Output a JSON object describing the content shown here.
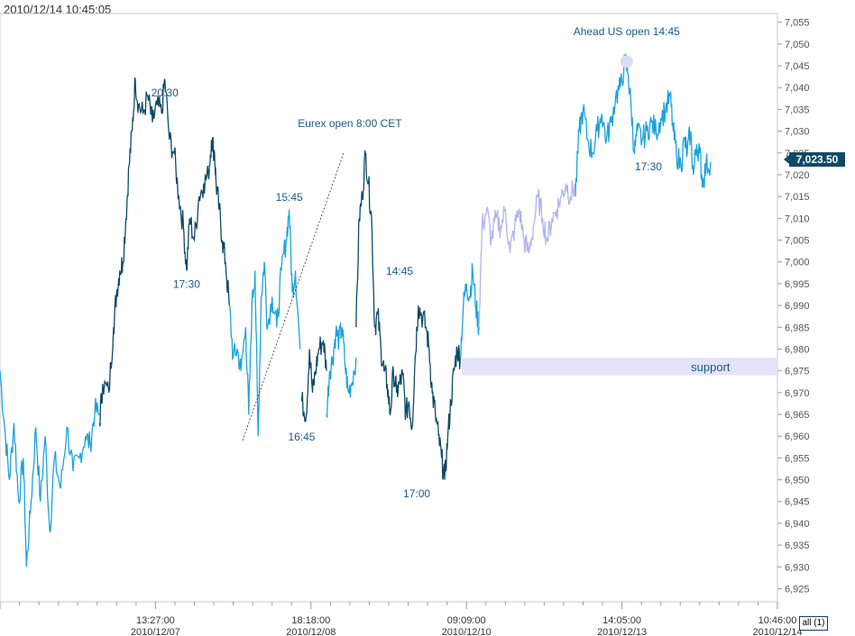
{
  "timestamp": "2010/12/14 10:45:05",
  "last_price_label": "7,023.50",
  "all_button_label": "all (1)",
  "colors": {
    "dark": "#0d4a66",
    "light": "#1ba3dc",
    "lavender": "#b3b3ef",
    "support_band": "#e3e3fb",
    "label_bg": "#0d4a66"
  },
  "chart_data": {
    "type": "line",
    "title": "",
    "ylim": [
      6922,
      7057
    ],
    "y_ticks": [
      "6,925",
      "6,930",
      "6,935",
      "6,940",
      "6,945",
      "6,950",
      "6,955",
      "6,960",
      "6,965",
      "6,970",
      "6,975",
      "6,980",
      "6,985",
      "6,990",
      "6,995",
      "7,000",
      "7,005",
      "7,010",
      "7,015",
      "7,020",
      "7,025",
      "7,030",
      "7,035",
      "7,040",
      "7,045",
      "7,050",
      "7,055"
    ],
    "x_ticks": [
      {
        "time": "13:27:00",
        "date": "2010/12/07"
      },
      {
        "time": "18:18:00",
        "date": "2010/12/08"
      },
      {
        "time": "09:09:00",
        "date": "2010/12/10"
      },
      {
        "time": "14:05:00",
        "date": "2010/12/13"
      },
      {
        "time": "10:46:00",
        "date": "2010/12/14"
      }
    ],
    "x_tick_positions": [
      0.2,
      0.4,
      0.6,
      0.8,
      1.0
    ],
    "series": [
      {
        "color": "light",
        "points": [
          [
            0.0,
            6975
          ],
          [
            0.006,
            6962
          ],
          [
            0.012,
            6950
          ],
          [
            0.018,
            6963
          ],
          [
            0.024,
            6945
          ],
          [
            0.03,
            6955
          ],
          [
            0.034,
            6930
          ],
          [
            0.04,
            6945
          ],
          [
            0.046,
            6962
          ],
          [
            0.052,
            6945
          ],
          [
            0.058,
            6960
          ],
          [
            0.064,
            6938
          ],
          [
            0.07,
            6955
          ],
          [
            0.078,
            6948
          ],
          [
            0.086,
            6962
          ],
          [
            0.094,
            6952
          ],
          [
            0.102,
            6955
          ],
          [
            0.11,
            6960
          ],
          [
            0.116,
            6958
          ],
          [
            0.122,
            6966
          ],
          [
            0.128,
            6965
          ]
        ]
      },
      {
        "color": "dark",
        "points": [
          [
            0.128,
            6963
          ],
          [
            0.132,
            6972
          ],
          [
            0.14,
            6970
          ],
          [
            0.146,
            6985
          ],
          [
            0.15,
            6993
          ],
          [
            0.154,
            6998
          ],
          [
            0.158,
            7000
          ],
          [
            0.162,
            7010
          ],
          [
            0.166,
            7022
          ],
          [
            0.17,
            7030
          ],
          [
            0.174,
            7042
          ],
          [
            0.178,
            7036
          ],
          [
            0.184,
            7034
          ],
          [
            0.19,
            7038
          ],
          [
            0.196,
            7032
          ],
          [
            0.202,
            7036
          ],
          [
            0.208,
            7034
          ],
          [
            0.212,
            7042
          ],
          [
            0.218,
            7028
          ],
          [
            0.224,
            7025
          ],
          [
            0.23,
            7015
          ],
          [
            0.236,
            7008
          ],
          [
            0.24,
            6998
          ],
          [
            0.244,
            7010
          ],
          [
            0.25,
            7005
          ],
          [
            0.256,
            7015
          ],
          [
            0.262,
            7018
          ],
          [
            0.268,
            7020
          ],
          [
            0.272,
            7028
          ],
          [
            0.276,
            7025
          ],
          [
            0.278,
            7018
          ],
          [
            0.282,
            7012
          ],
          [
            0.286,
            7005
          ],
          [
            0.29,
            7000
          ],
          [
            0.295,
            6990
          ]
        ]
      },
      {
        "color": "light",
        "points": [
          [
            0.295,
            6990
          ],
          [
            0.3,
            6978
          ],
          [
            0.305,
            6980
          ],
          [
            0.31,
            6975
          ],
          [
            0.316,
            6985
          ],
          [
            0.32,
            6965
          ],
          [
            0.324,
            6990
          ],
          [
            0.328,
            6998
          ],
          [
            0.332,
            6960
          ],
          [
            0.336,
            6992
          ],
          [
            0.34,
            7000
          ],
          [
            0.344,
            6985
          ],
          [
            0.35,
            6992
          ],
          [
            0.356,
            6985
          ],
          [
            0.362,
            6998
          ],
          [
            0.368,
            7005
          ],
          [
            0.372,
            7012
          ],
          [
            0.376,
            6993
          ],
          [
            0.38,
            6998
          ],
          [
            0.386,
            6980
          ]
        ]
      },
      {
        "color": "dark",
        "points": [
          [
            0.388,
            6968
          ],
          [
            0.394,
            6965
          ],
          [
            0.398,
            6980
          ],
          [
            0.402,
            6970
          ],
          [
            0.406,
            6975
          ],
          [
            0.41,
            6980
          ],
          [
            0.416,
            6982
          ],
          [
            0.42,
            6975
          ]
        ]
      },
      {
        "color": "light",
        "points": [
          [
            0.42,
            6965
          ],
          [
            0.424,
            6975
          ],
          [
            0.428,
            6978
          ],
          [
            0.432,
            6984
          ],
          [
            0.436,
            6982
          ],
          [
            0.44,
            6985
          ],
          [
            0.444,
            6976
          ],
          [
            0.448,
            6970
          ],
          [
            0.452,
            6972
          ],
          [
            0.458,
            6978
          ]
        ]
      },
      {
        "color": "dark",
        "points": [
          [
            0.458,
            6985
          ],
          [
            0.462,
            7010
          ],
          [
            0.466,
            7015
          ],
          [
            0.47,
            7025
          ],
          [
            0.474,
            7018
          ],
          [
            0.478,
            7010
          ],
          [
            0.482,
            6985
          ],
          [
            0.486,
            6988
          ],
          [
            0.49,
            6980
          ],
          [
            0.494,
            6975
          ],
          [
            0.498,
            6972
          ],
          [
            0.502,
            6965
          ],
          [
            0.506,
            6975
          ],
          [
            0.51,
            6970
          ],
          [
            0.514,
            6972
          ],
          [
            0.518,
            6974
          ],
          [
            0.522,
            6965
          ],
          [
            0.526,
            6968
          ],
          [
            0.53,
            6962
          ],
          [
            0.534,
            6978
          ],
          [
            0.538,
            6990
          ],
          [
            0.542,
            6988
          ],
          [
            0.548,
            6985
          ],
          [
            0.552,
            6980
          ],
          [
            0.556,
            6970
          ],
          [
            0.56,
            6965
          ],
          [
            0.564,
            6960
          ],
          [
            0.568,
            6955
          ],
          [
            0.572,
            6950
          ],
          [
            0.576,
            6960
          ],
          [
            0.58,
            6968
          ],
          [
            0.584,
            6975
          ],
          [
            0.588,
            6980
          ],
          [
            0.592,
            6978
          ]
        ]
      },
      {
        "color": "light",
        "points": [
          [
            0.592,
            6978
          ],
          [
            0.596,
            6990
          ],
          [
            0.6,
            6995
          ],
          [
            0.604,
            6992
          ],
          [
            0.608,
            6998
          ],
          [
            0.612,
            6990
          ],
          [
            0.616,
            6985
          ]
        ]
      },
      {
        "color": "lavender",
        "points": [
          [
            0.616,
            6985
          ],
          [
            0.62,
            7008
          ],
          [
            0.626,
            7012
          ],
          [
            0.632,
            7005
          ],
          [
            0.638,
            7010
          ],
          [
            0.644,
            7008
          ],
          [
            0.65,
            7012
          ],
          [
            0.656,
            7002
          ],
          [
            0.662,
            7008
          ],
          [
            0.668,
            7012
          ],
          [
            0.674,
            7005
          ],
          [
            0.68,
            7002
          ],
          [
            0.686,
            7008
          ],
          [
            0.692,
            7015
          ],
          [
            0.698,
            7010
          ],
          [
            0.704,
            7005
          ],
          [
            0.71,
            7010
          ],
          [
            0.716,
            7012
          ],
          [
            0.722,
            7015
          ],
          [
            0.728,
            7018
          ],
          [
            0.734,
            7015
          ],
          [
            0.74,
            7018
          ]
        ]
      },
      {
        "color": "light",
        "points": [
          [
            0.74,
            7015
          ],
          [
            0.745,
            7030
          ],
          [
            0.75,
            7035
          ],
          [
            0.756,
            7028
          ],
          [
            0.762,
            7025
          ],
          [
            0.768,
            7030
          ],
          [
            0.774,
            7034
          ],
          [
            0.78,
            7028
          ],
          [
            0.786,
            7032
          ],
          [
            0.792,
            7038
          ],
          [
            0.798,
            7040
          ],
          [
            0.804,
            7046
          ],
          [
            0.808,
            7043
          ],
          [
            0.812,
            7035
          ],
          [
            0.816,
            7025
          ],
          [
            0.82,
            7030
          ],
          [
            0.826,
            7028
          ],
          [
            0.832,
            7030
          ],
          [
            0.838,
            7032
          ],
          [
            0.844,
            7030
          ],
          [
            0.85,
            7033
          ],
          [
            0.856,
            7035
          ],
          [
            0.862,
            7038
          ],
          [
            0.866,
            7030
          ]
        ]
      },
      {
        "color": "light",
        "points": [
          [
            0.866,
            7030
          ],
          [
            0.87,
            7025
          ],
          [
            0.876,
            7022
          ],
          [
            0.88,
            7028
          ],
          [
            0.884,
            7025
          ],
          [
            0.888,
            7030
          ],
          [
            0.892,
            7020
          ],
          [
            0.896,
            7027
          ],
          [
            0.9,
            7025
          ],
          [
            0.904,
            7018
          ],
          [
            0.908,
            7022
          ],
          [
            0.914,
            7023
          ]
        ]
      }
    ],
    "annotations": [
      {
        "text": "20:30",
        "x": 0.212,
        "y": 7038
      },
      {
        "text": "17:30",
        "x": 0.24,
        "y": 6994
      },
      {
        "text": "15:45",
        "x": 0.372,
        "y": 7014
      },
      {
        "text": "16:45",
        "x": 0.388,
        "y": 6959
      },
      {
        "text": "Eurex open 8:00 CET",
        "x": 0.45,
        "y": 7031
      },
      {
        "text": "14:45",
        "x": 0.514,
        "y": 6997
      },
      {
        "text": "17:00",
        "x": 0.536,
        "y": 6946
      },
      {
        "text": "Ahead US open 14:45",
        "x": 0.806,
        "y": 7052
      },
      {
        "text": "17:30",
        "x": 0.834,
        "y": 7021
      }
    ],
    "dotted_trend": [
      [
        0.312,
        6959
      ],
      [
        0.442,
        7025
      ]
    ],
    "peak_marker": {
      "x": 0.806,
      "y": 7046
    },
    "support": {
      "label": "support",
      "x0": 0.66,
      "x1": 1.0,
      "y_low": 6974,
      "y_high": 6978
    },
    "last_value": 7023.5
  }
}
